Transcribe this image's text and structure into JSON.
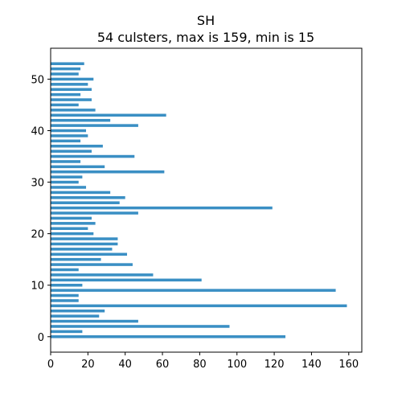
{
  "chart_data": {
    "type": "bar",
    "orientation": "horizontal",
    "title": "SH",
    "subtitle": "54 culsters, max is 159, min is 15",
    "xlabel": "",
    "ylabel": "",
    "xlim": [
      0,
      167
    ],
    "ylim": [
      -3,
      56
    ],
    "grid": false,
    "bar_color": "#3a8fc4",
    "xticks": [
      0,
      20,
      40,
      60,
      80,
      100,
      120,
      140,
      160
    ],
    "yticks": [
      0,
      10,
      20,
      30,
      40,
      50
    ],
    "categories": [
      0,
      1,
      2,
      3,
      4,
      5,
      6,
      7,
      8,
      9,
      10,
      11,
      12,
      13,
      14,
      15,
      16,
      17,
      18,
      19,
      20,
      21,
      22,
      23,
      24,
      25,
      26,
      27,
      28,
      29,
      30,
      31,
      32,
      33,
      34,
      35,
      36,
      37,
      38,
      39,
      40,
      41,
      42,
      43,
      44,
      45,
      46,
      47,
      48,
      49,
      50,
      51,
      52,
      53
    ],
    "values": [
      126,
      17,
      96,
      47,
      26,
      29,
      159,
      15,
      15,
      153,
      17,
      81,
      55,
      15,
      44,
      27,
      41,
      33,
      36,
      36,
      23,
      20,
      24,
      22,
      47,
      119,
      37,
      40,
      32,
      19,
      15,
      17,
      61,
      29,
      16,
      45,
      22,
      28,
      16,
      20,
      19,
      47,
      32,
      62,
      24,
      15,
      22,
      16,
      22,
      20,
      23,
      15,
      16,
      18
    ]
  }
}
